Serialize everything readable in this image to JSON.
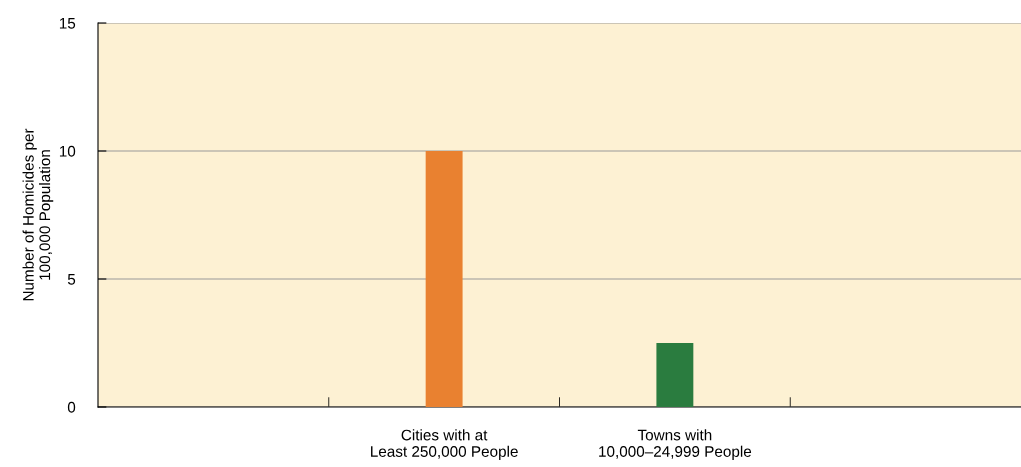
{
  "chart_data": {
    "type": "bar",
    "ylabel": "Number of Homicides per\n100,000 Population",
    "categories": [
      null,
      "Cities with at\nLeast 250,000 People",
      "Towns with\n10,000–24,999 People",
      null
    ],
    "values": [
      null,
      10,
      2.5,
      null
    ],
    "colors": [
      "#e98130",
      "#e98130",
      "#2a7c3f",
      "#2a7c3f"
    ],
    "ylim": [
      0,
      15
    ],
    "yticks": [
      0,
      5,
      10,
      15
    ],
    "grid": "y",
    "legend": false
  }
}
